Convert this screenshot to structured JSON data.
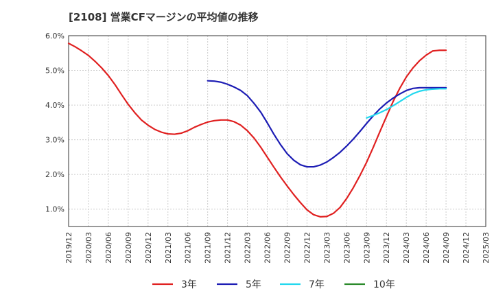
{
  "chart_data": {
    "type": "line",
    "title": "[2108]  営業CFマージンの平均値の推移",
    "xlabel": "",
    "ylabel": "",
    "x_ticks": [
      "2019/12",
      "2020/03",
      "2020/06",
      "2020/09",
      "2020/12",
      "2021/03",
      "2021/06",
      "2021/09",
      "2021/12",
      "2022/03",
      "2022/06",
      "2022/09",
      "2022/12",
      "2023/03",
      "2023/06",
      "2023/09",
      "2023/12",
      "2024/03",
      "2024/06",
      "2024/09",
      "2024/12",
      "2025/03"
    ],
    "y_ticks": [
      "1.0%",
      "2.0%",
      "3.0%",
      "4.0%",
      "5.0%",
      "6.0%"
    ],
    "ylim": [
      0.5,
      6.0
    ],
    "grid": true,
    "legend_position": "bottom",
    "series": [
      {
        "name": "3年",
        "color": "#e02020",
        "x": [
          "2019/12",
          "2020/01",
          "2020/02",
          "2020/03",
          "2020/04",
          "2020/05",
          "2020/06",
          "2020/07",
          "2020/08",
          "2020/09",
          "2020/10",
          "2020/11",
          "2020/12",
          "2021/01",
          "2021/02",
          "2021/03",
          "2021/04",
          "2021/05",
          "2021/06",
          "2021/07",
          "2021/08",
          "2021/09",
          "2021/10",
          "2021/11",
          "2021/12",
          "2022/01",
          "2022/02",
          "2022/03",
          "2022/04",
          "2022/05",
          "2022/06",
          "2022/07",
          "2022/08",
          "2022/09",
          "2022/10",
          "2022/11",
          "2022/12",
          "2023/01",
          "2023/02",
          "2023/03",
          "2023/04",
          "2023/05",
          "2023/06",
          "2023/07",
          "2023/08",
          "2023/09",
          "2023/10",
          "2023/11",
          "2023/12",
          "2024/01",
          "2024/02",
          "2024/03",
          "2024/04",
          "2024/05",
          "2024/06",
          "2024/07",
          "2024/08",
          "2024/09"
        ],
        "values": [
          5.78,
          5.68,
          5.56,
          5.43,
          5.26,
          5.07,
          4.85,
          4.59,
          4.3,
          4.02,
          3.78,
          3.57,
          3.42,
          3.3,
          3.22,
          3.17,
          3.16,
          3.19,
          3.26,
          3.36,
          3.44,
          3.51,
          3.55,
          3.57,
          3.57,
          3.52,
          3.42,
          3.26,
          3.05,
          2.79,
          2.5,
          2.21,
          1.93,
          1.67,
          1.42,
          1.19,
          0.98,
          0.84,
          0.78,
          0.79,
          0.88,
          1.05,
          1.31,
          1.62,
          1.97,
          2.35,
          2.78,
          3.23,
          3.67,
          4.1,
          4.48,
          4.81,
          5.07,
          5.28,
          5.44,
          5.56,
          5.58,
          5.58
        ]
      },
      {
        "name": "5年",
        "color": "#1c1cb4",
        "x": [
          "2021/09",
          "2021/10",
          "2021/11",
          "2021/12",
          "2022/01",
          "2022/02",
          "2022/03",
          "2022/04",
          "2022/05",
          "2022/06",
          "2022/07",
          "2022/08",
          "2022/09",
          "2022/10",
          "2022/11",
          "2022/12",
          "2023/01",
          "2023/02",
          "2023/03",
          "2023/04",
          "2023/05",
          "2023/06",
          "2023/07",
          "2023/08",
          "2023/09",
          "2023/10",
          "2023/11",
          "2023/12",
          "2024/01",
          "2024/02",
          "2024/03",
          "2024/04",
          "2024/05",
          "2024/06",
          "2024/07",
          "2024/08",
          "2024/09"
        ],
        "values": [
          4.7,
          4.69,
          4.66,
          4.6,
          4.52,
          4.42,
          4.27,
          4.05,
          3.8,
          3.49,
          3.16,
          2.86,
          2.6,
          2.41,
          2.28,
          2.22,
          2.22,
          2.27,
          2.36,
          2.49,
          2.64,
          2.82,
          3.02,
          3.24,
          3.47,
          3.69,
          3.89,
          4.06,
          4.2,
          4.32,
          4.42,
          4.48,
          4.5,
          4.5,
          4.5,
          4.5,
          4.5
        ]
      },
      {
        "name": "7年",
        "color": "#22d8ee",
        "x": [
          "2023/09",
          "2023/10",
          "2023/11",
          "2023/12",
          "2024/01",
          "2024/02",
          "2024/03",
          "2024/04",
          "2024/05",
          "2024/06",
          "2024/07",
          "2024/08",
          "2024/09"
        ],
        "values": [
          3.63,
          3.7,
          3.78,
          3.87,
          3.98,
          4.1,
          4.22,
          4.33,
          4.4,
          4.44,
          4.46,
          4.47,
          4.47
        ]
      },
      {
        "name": "10年",
        "color": "#2a8a2a",
        "x": [],
        "values": []
      }
    ]
  }
}
